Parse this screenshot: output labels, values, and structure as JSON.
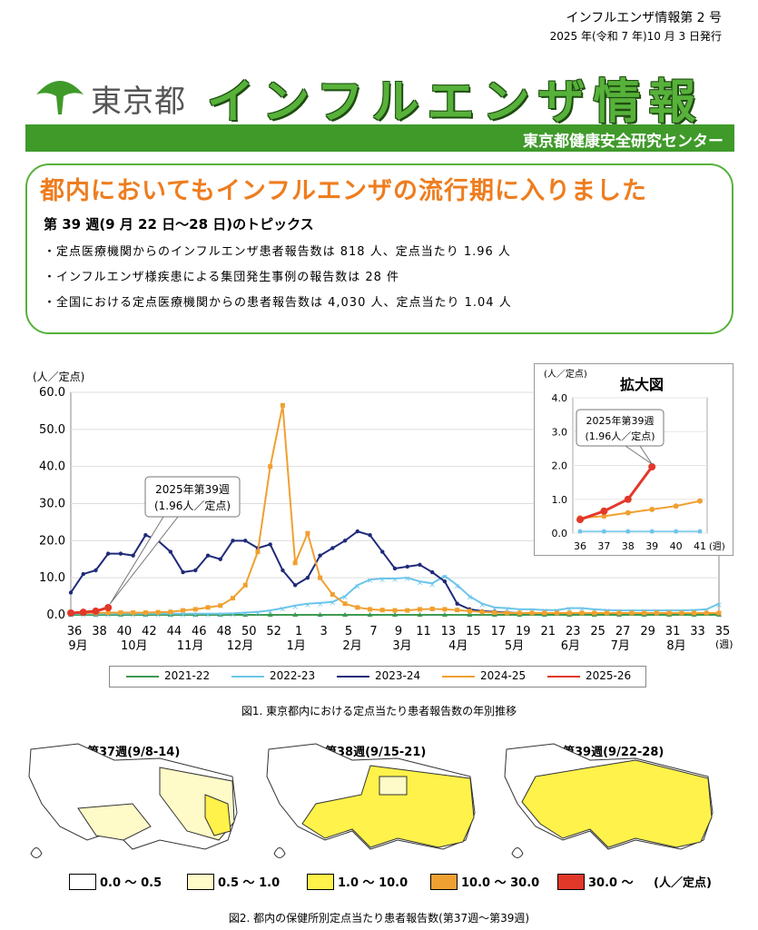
{
  "header": {
    "issue": "インフルエンザ情報第 2 号",
    "date": "2025 年(令和 7 年)10 月 3 日発行",
    "org": "東京都",
    "title": "インフルエンザ情報",
    "center": "東京都健康安全研究センター"
  },
  "topics": {
    "headline": "都内においてもインフルエンザの流行期に入りました",
    "week": "第 39 週(9 月 22 日～28 日)のトピックス",
    "bullets": [
      "・定点医療機関からのインフルエンザ患者報告数は 818 人、定点当たり 1.96 人",
      "・インフルエンザ様疾患による集団発生事例の報告数は 28 件",
      "・全国における定点医療機関からの患者報告数は 4,030 人、定点当たり 1.04 人"
    ]
  },
  "chart_data": {
    "type": "line",
    "ylabel": "(人／定点)",
    "ylim": [
      0,
      60
    ],
    "yticks": [
      "0.0",
      "10.0",
      "20.0",
      "30.0",
      "40.0",
      "50.0",
      "60.0"
    ],
    "x_week_labels": [
      "36",
      "38",
      "40",
      "42",
      "44",
      "46",
      "48",
      "50",
      "52",
      "1",
      "3",
      "5",
      "7",
      "9",
      "11",
      "13",
      "15",
      "17",
      "19",
      "21",
      "23",
      "25",
      "27",
      "29",
      "31",
      "33",
      "35"
    ],
    "x_month_labels": [
      "9月",
      "10月",
      "11月",
      "12月",
      "1月",
      "2月",
      "3月",
      "4月",
      "5月",
      "6月",
      "7月",
      "8月"
    ],
    "x_unit": "(週)",
    "series": [
      {
        "name": "2021-22",
        "color": "#3e9b52",
        "values": [
          0,
          0,
          0,
          0,
          0,
          0,
          0,
          0,
          0,
          0,
          0,
          0,
          0,
          0,
          0,
          0,
          0,
          0,
          0,
          0,
          0,
          0,
          0,
          0,
          0,
          0,
          0,
          0,
          0,
          0,
          0,
          0,
          0,
          0,
          0,
          0,
          0,
          0,
          0,
          0,
          0,
          0,
          0,
          0,
          0,
          0,
          0,
          0,
          0,
          0,
          0,
          0,
          0
        ]
      },
      {
        "name": "2022-23",
        "color": "#6cc5ea",
        "values": [
          0.3,
          0.3,
          0.3,
          0.3,
          0.3,
          0.3,
          0.3,
          0.3,
          0.3,
          0.3,
          0.3,
          0.3,
          0.3,
          0.4,
          0.6,
          0.8,
          1.2,
          1.8,
          2.5,
          3,
          3.2,
          3.5,
          5,
          8,
          9.5,
          9.8,
          9.8,
          10,
          9,
          8.5,
          10.5,
          8,
          5,
          3,
          2,
          1.8,
          1.5,
          1.5,
          1.3,
          1.3,
          1.8,
          1.8,
          1.5,
          1.3,
          1.2,
          1.2,
          1.2,
          1.2,
          1.2,
          1.2,
          1.3,
          1.5,
          3
        ]
      },
      {
        "name": "2023-24",
        "color": "#1f2a7a",
        "values": [
          6,
          11,
          12,
          16.5,
          16.5,
          16,
          21.5,
          20,
          17,
          11.5,
          12,
          16,
          15,
          20,
          20,
          18,
          19,
          12,
          8,
          10,
          16,
          18,
          20,
          22.5,
          21.5,
          17,
          12.5,
          13,
          13.5,
          11.5,
          9,
          3,
          1.5,
          1,
          0.8,
          0.6,
          0.5,
          0.5,
          0.5,
          0.5,
          0.5,
          0.5,
          0.5,
          0.5,
          0.5,
          0.5,
          0.5,
          0.5,
          0.5,
          0.5,
          0.5,
          0.5,
          0.5
        ]
      },
      {
        "name": "2024-25",
        "color": "#f0a030",
        "values": [
          0.5,
          0.5,
          0.5,
          0.6,
          0.6,
          0.6,
          0.6,
          0.7,
          0.8,
          1.2,
          1.5,
          2,
          2.5,
          4.5,
          8,
          17,
          40,
          56.5,
          14,
          22,
          10,
          5.5,
          3,
          2,
          1.5,
          1.3,
          1.2,
          1.2,
          1.5,
          1.6,
          1.5,
          1.3,
          1,
          0.8,
          0.6,
          0.5,
          0.5,
          0.5,
          0.5,
          0.5,
          0.5,
          0.5,
          0.5,
          0.5,
          0.5,
          0.5,
          0.5,
          0.5,
          0.5,
          0.5,
          0.5,
          0.5,
          0.5
        ]
      },
      {
        "name": "2025-26",
        "color": "#e2382a",
        "values": [
          0.5,
          0.7,
          1,
          1.96
        ]
      }
    ],
    "annotation": {
      "text1": "2025年第39週",
      "text2": "(1.96人／定点)"
    }
  },
  "inset": {
    "title": "拡大図",
    "ylabel": "(人／定点)",
    "yticks": [
      "0.0",
      "1.0",
      "2.0",
      "3.0",
      "4.0"
    ],
    "xticks": [
      "36",
      "37",
      "38",
      "39",
      "40",
      "41"
    ],
    "x_unit": "(週)",
    "ylim": [
      0,
      4
    ],
    "series_2425": [
      0.45,
      0.5,
      0.6,
      0.7,
      0.8,
      0.95
    ],
    "series_2526": [
      0.4,
      0.65,
      1.0,
      1.96
    ],
    "series_2223": [
      0.05,
      0.05,
      0.05,
      0.05,
      0.05,
      0.05
    ],
    "annotation1": "2025年第39週",
    "annotation2": "(1.96人／定点)"
  },
  "captions": {
    "fig1": "図1. 東京都内における定点当たり患者報告数の年別推移",
    "fig2": "図2. 都内の保健所別定点当たり患者報告数(第37週～第39週)"
  },
  "maps": [
    {
      "title": "第37週(9/8-14)"
    },
    {
      "title": "第38週(9/15-21)"
    },
    {
      "title": "第39週(9/22-28)"
    }
  ],
  "map_legend": {
    "items": [
      {
        "label": "0.0 ～ 0.5",
        "color": "#ffffff"
      },
      {
        "label": "0.5 ～ 1.0",
        "color": "#fffbc8"
      },
      {
        "label": "1.0 ～ 10.0",
        "color": "#fff24a"
      },
      {
        "label": "10.0 ～ 30.0",
        "color": "#f0a030"
      },
      {
        "label": "30.0 ～",
        "color": "#e2382a"
      }
    ],
    "unit": "(人／定点)"
  }
}
